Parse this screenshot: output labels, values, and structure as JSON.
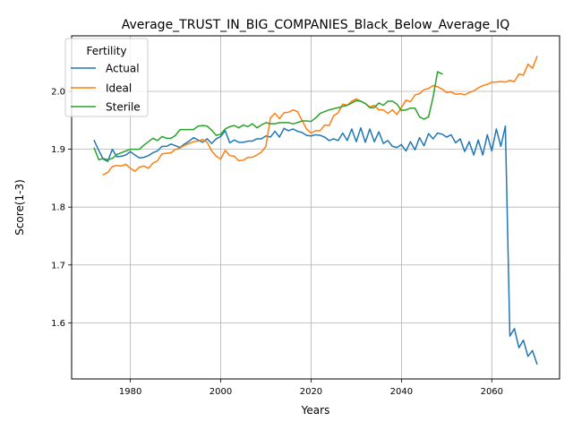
{
  "chart_data": {
    "type": "line",
    "title": "Average_TRUST_IN_BIG_COMPANIES_Black_Below_Average_IQ",
    "xlabel": "Years",
    "ylabel": "Score(1-3)",
    "xlim": [
      1967,
      2075
    ],
    "ylim": [
      1.503,
      2.096
    ],
    "xticks": [
      1980,
      2000,
      2020,
      2040,
      2060
    ],
    "yticks": [
      1.6,
      1.7,
      1.8,
      1.9,
      2.0
    ],
    "xtick_labels": [
      "1980",
      "2000",
      "2020",
      "2040",
      "2060"
    ],
    "ytick_labels": [
      "1.6",
      "1.7",
      "1.8",
      "1.9",
      "2.0"
    ],
    "grid": true,
    "legend": {
      "title": "Fertility",
      "position": "top-left"
    },
    "series": [
      {
        "name": "Actual",
        "color": "#1f77b4",
        "x": [
          1972,
          1973,
          1974,
          1975,
          1976,
          1977,
          1978,
          1979,
          1980,
          1981,
          1982,
          1983,
          1984,
          1985,
          1986,
          1987,
          1988,
          1989,
          1990,
          1991,
          1992,
          1993,
          1994,
          1995,
          1996,
          1997,
          1998,
          1999,
          2000,
          2001,
          2002,
          2003,
          2004,
          2005,
          2006,
          2007,
          2008,
          2009,
          2010,
          2011,
          2012,
          2013,
          2014,
          2015,
          2016,
          2017,
          2018,
          2019,
          2020,
          2021,
          2022,
          2023,
          2024,
          2025,
          2026,
          2027,
          2028,
          2029,
          2030,
          2031,
          2032,
          2033,
          2034,
          2035,
          2036,
          2037,
          2038,
          2039,
          2040,
          2041,
          2042,
          2043,
          2044,
          2045,
          2046,
          2047,
          2048,
          2049,
          2050,
          2051,
          2052,
          2053,
          2054,
          2055,
          2056,
          2057,
          2058,
          2059,
          2060,
          2061,
          2062,
          2063,
          2064,
          2065,
          2066,
          2067,
          2068,
          2069,
          2070
        ],
        "y": [
          1.915,
          1.898,
          1.883,
          1.879,
          1.9,
          1.887,
          1.888,
          1.89,
          1.896,
          1.89,
          1.885,
          1.886,
          1.889,
          1.894,
          1.897,
          1.905,
          1.905,
          1.909,
          1.906,
          1.903,
          1.909,
          1.914,
          1.92,
          1.916,
          1.912,
          1.918,
          1.91,
          1.918,
          1.922,
          1.932,
          1.911,
          1.916,
          1.912,
          1.912,
          1.914,
          1.914,
          1.918,
          1.918,
          1.923,
          1.921,
          1.931,
          1.921,
          1.936,
          1.932,
          1.935,
          1.931,
          1.929,
          1.924,
          1.923,
          1.925,
          1.924,
          1.921,
          1.915,
          1.918,
          1.915,
          1.928,
          1.915,
          1.935,
          1.913,
          1.937,
          1.912,
          1.935,
          1.913,
          1.93,
          1.91,
          1.915,
          1.905,
          1.903,
          1.908,
          1.897,
          1.913,
          1.899,
          1.92,
          1.906,
          1.927,
          1.918,
          1.928,
          1.926,
          1.921,
          1.925,
          1.911,
          1.918,
          1.896,
          1.913,
          1.89,
          1.916,
          1.89,
          1.925,
          1.897,
          1.935,
          1.905,
          1.94,
          1.577,
          1.59,
          1.557,
          1.57,
          1.542,
          1.552,
          1.529
        ]
      },
      {
        "name": "Ideal",
        "color": "#ff7f0e",
        "x": [
          1974,
          1975,
          1976,
          1977,
          1978,
          1979,
          1980,
          1981,
          1982,
          1983,
          1984,
          1985,
          1986,
          1987,
          1988,
          1989,
          1990,
          1991,
          1992,
          1993,
          1994,
          1995,
          1996,
          1997,
          1998,
          1999,
          2000,
          2001,
          2002,
          2003,
          2004,
          2005,
          2006,
          2007,
          2008,
          2009,
          2010,
          2011,
          2012,
          2013,
          2014,
          2015,
          2016,
          2017,
          2018,
          2019,
          2020,
          2021,
          2022,
          2023,
          2024,
          2025,
          2026,
          2027,
          2028,
          2029,
          2030,
          2031,
          2032,
          2033,
          2034,
          2035,
          2036,
          2037,
          2038,
          2039,
          2040,
          2041,
          2042,
          2043,
          2044,
          2045,
          2046,
          2047,
          2048,
          2049,
          2050,
          2051,
          2052,
          2053,
          2054,
          2055,
          2056,
          2057,
          2058,
          2059,
          2060,
          2061,
          2062,
          2063,
          2064,
          2065,
          2066,
          2067,
          2068,
          2069,
          2070
        ],
        "y": [
          1.856,
          1.86,
          1.87,
          1.872,
          1.871,
          1.874,
          1.867,
          1.862,
          1.869,
          1.871,
          1.867,
          1.876,
          1.88,
          1.892,
          1.893,
          1.894,
          1.9,
          1.902,
          1.907,
          1.91,
          1.913,
          1.914,
          1.917,
          1.912,
          1.897,
          1.888,
          1.883,
          1.898,
          1.889,
          1.888,
          1.88,
          1.881,
          1.886,
          1.886,
          1.89,
          1.895,
          1.905,
          1.954,
          1.962,
          1.953,
          1.963,
          1.964,
          1.968,
          1.965,
          1.95,
          1.935,
          1.928,
          1.932,
          1.932,
          1.942,
          1.941,
          1.958,
          1.963,
          1.978,
          1.976,
          1.983,
          1.987,
          1.983,
          1.979,
          1.973,
          1.976,
          1.968,
          1.968,
          1.962,
          1.968,
          1.96,
          1.972,
          1.985,
          1.982,
          1.994,
          1.996,
          2.003,
          2.005,
          2.01,
          2.008,
          2.004,
          1.998,
          1.999,
          1.995,
          1.996,
          1.994,
          1.998,
          2.001,
          2.006,
          2.01,
          2.012,
          2.016,
          2.016,
          2.017,
          2.016,
          2.019,
          2.017,
          2.03,
          2.028,
          2.047,
          2.04,
          2.06
        ]
      },
      {
        "name": "Sterile",
        "color": "#2ca02c",
        "x": [
          1972,
          1973,
          1974,
          1975,
          1976,
          1977,
          1978,
          1979,
          1980,
          1981,
          1982,
          1983,
          1984,
          1985,
          1986,
          1987,
          1988,
          1989,
          1990,
          1991,
          1992,
          1993,
          1994,
          1995,
          1996,
          1997,
          1998,
          1999,
          2000,
          2001,
          2002,
          2003,
          2004,
          2005,
          2006,
          2007,
          2008,
          2009,
          2010,
          2011,
          2012,
          2013,
          2014,
          2015,
          2016,
          2017,
          2018,
          2019,
          2020,
          2021,
          2022,
          2023,
          2024,
          2025,
          2026,
          2027,
          2028,
          2029,
          2030,
          2031,
          2032,
          2033,
          2034,
          2035,
          2036,
          2037,
          2038,
          2039,
          2040,
          2041,
          2042,
          2043,
          2044,
          2045,
          2046,
          2047,
          2048,
          2049
        ],
        "y": [
          1.902,
          1.882,
          1.884,
          1.882,
          1.884,
          1.891,
          1.894,
          1.897,
          1.9,
          1.9,
          1.9,
          1.907,
          1.913,
          1.919,
          1.915,
          1.922,
          1.919,
          1.919,
          1.924,
          1.934,
          1.934,
          1.934,
          1.934,
          1.94,
          1.941,
          1.94,
          1.933,
          1.924,
          1.926,
          1.935,
          1.939,
          1.941,
          1.937,
          1.942,
          1.939,
          1.944,
          1.937,
          1.942,
          1.946,
          1.944,
          1.944,
          1.946,
          1.946,
          1.946,
          1.944,
          1.946,
          1.949,
          1.949,
          1.948,
          1.954,
          1.962,
          1.965,
          1.968,
          1.97,
          1.972,
          1.974,
          1.976,
          1.98,
          1.984,
          1.983,
          1.979,
          1.972,
          1.972,
          1.98,
          1.976,
          1.983,
          1.983,
          1.978,
          1.967,
          1.968,
          1.971,
          1.971,
          1.956,
          1.952,
          1.956,
          1.99,
          2.034,
          2.03
        ]
      }
    ]
  }
}
